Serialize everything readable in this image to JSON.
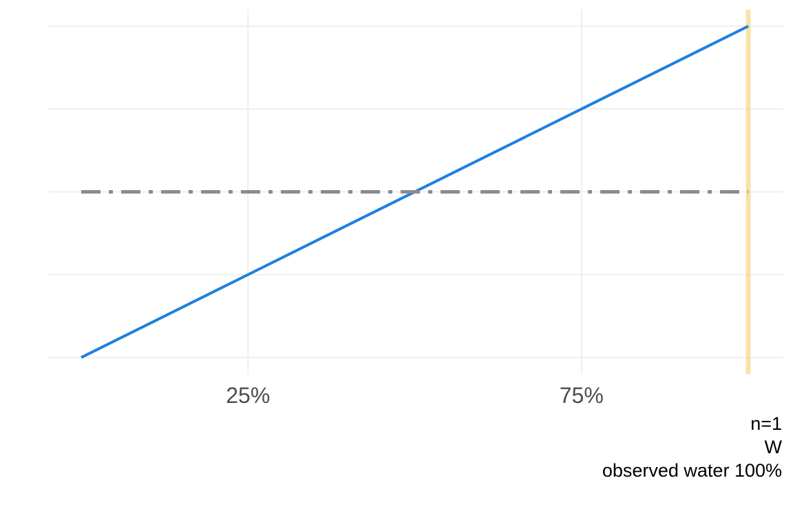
{
  "chart_data": {
    "type": "line",
    "title": "",
    "xlabel": "",
    "ylabel": "",
    "xlim": [
      0,
      1.05
    ],
    "ylim": [
      0,
      2
    ],
    "x_ticks": [
      0.25,
      0.75
    ],
    "x_tick_labels": [
      "25%",
      "75%"
    ],
    "y_gridlines": [
      0,
      0.5,
      1,
      1.5,
      2
    ],
    "y_tick_labels_shown": false,
    "grid": true,
    "series": [
      {
        "role": "posterior",
        "style": "solid",
        "color": "#1E7FE0",
        "x": [
          0,
          1
        ],
        "y": [
          0,
          2
        ]
      },
      {
        "role": "prior",
        "style": "dashdot",
        "color": "#8C8C8C",
        "x": [
          0,
          1
        ],
        "y": [
          1,
          1
        ]
      }
    ],
    "vline": {
      "x": 1,
      "color": "#F5D88A"
    },
    "caption": [
      "n=1",
      "W",
      "observed water 100%"
    ]
  }
}
